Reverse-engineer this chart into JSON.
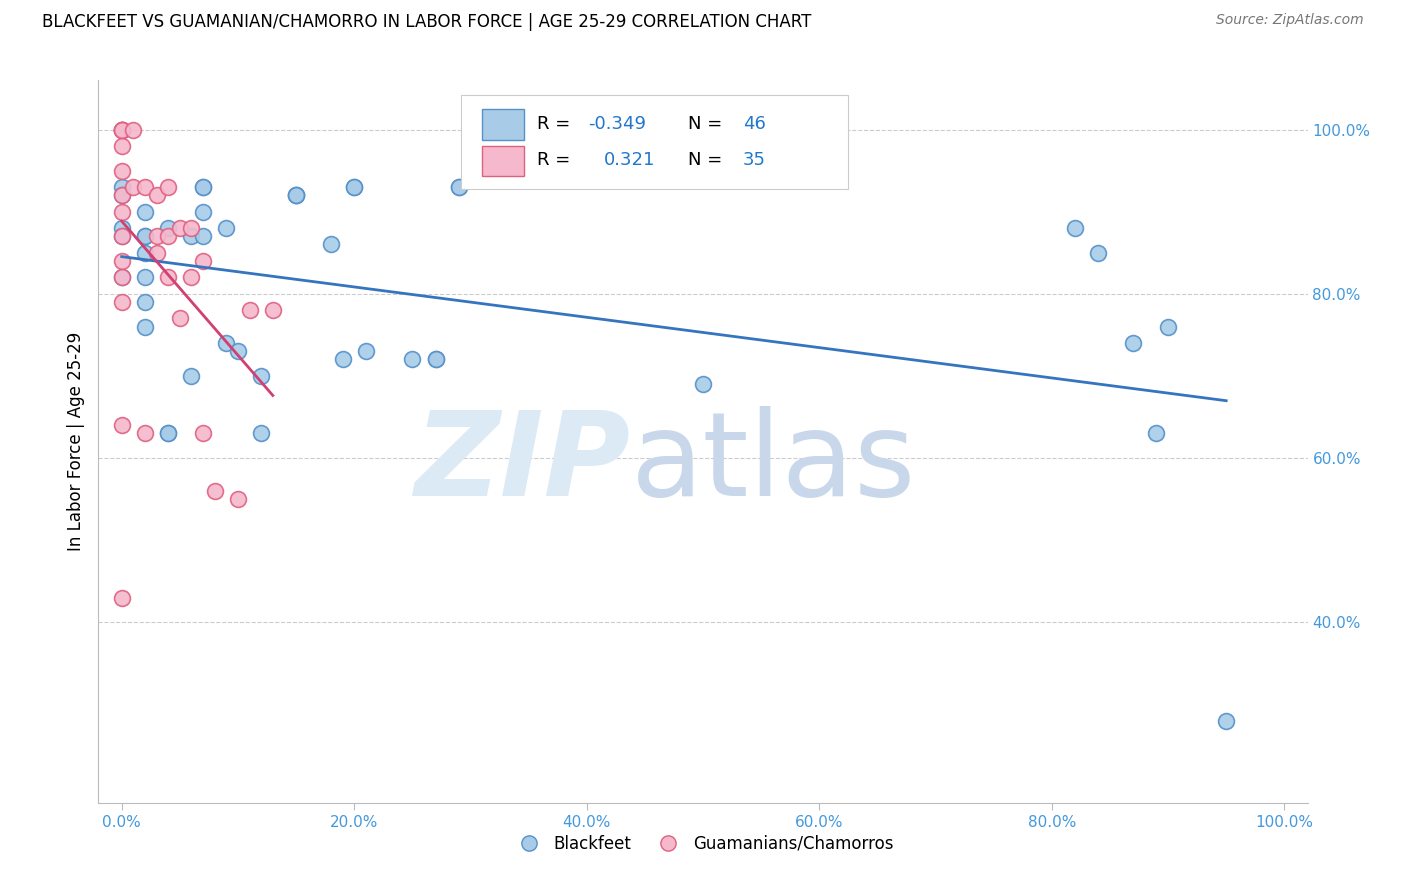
{
  "title": "BLACKFEET VS GUAMANIAN/CHAMORRO IN LABOR FORCE | AGE 25-29 CORRELATION CHART",
  "source": "Source: ZipAtlas.com",
  "ylabel": "In Labor Force | Age 25-29",
  "xlim": [
    -0.02,
    1.02
  ],
  "ylim": [
    0.18,
    1.06
  ],
  "xticks": [
    0.0,
    0.2,
    0.4,
    0.6,
    0.8,
    1.0
  ],
  "yticks_right": [
    0.4,
    0.6,
    0.8,
    1.0
  ],
  "xticklabels": [
    "0.0%",
    "20.0%",
    "40.0%",
    "60.0%",
    "80.0%",
    "100.0%"
  ],
  "yticklabels_right": [
    "40.0%",
    "60.0%",
    "80.0%",
    "100.0%"
  ],
  "grid_yticks": [
    0.4,
    0.6,
    0.8,
    1.0
  ],
  "blue_scatter_color": "#a8cce8",
  "blue_scatter_edge": "#5590c8",
  "pink_scatter_color": "#f5b8cc",
  "pink_scatter_edge": "#e06080",
  "blue_line_color": "#3575c0",
  "pink_line_color": "#d04070",
  "legend_blue_R": "-0.349",
  "legend_blue_N": "46",
  "legend_pink_R": "0.321",
  "legend_pink_N": "35",
  "tick_color": "#4499dd",
  "blue_x": [
    0.0,
    0.0,
    0.0,
    0.0,
    0.0,
    0.02,
    0.02,
    0.02,
    0.02,
    0.02,
    0.02,
    0.02,
    0.04,
    0.04,
    0.04,
    0.06,
    0.06,
    0.07,
    0.07,
    0.07,
    0.07,
    0.09,
    0.09,
    0.1,
    0.12,
    0.12,
    0.15,
    0.15,
    0.15,
    0.18,
    0.19,
    0.2,
    0.2,
    0.21,
    0.25,
    0.27,
    0.27,
    0.29,
    0.29,
    0.5,
    0.82,
    0.84,
    0.87,
    0.89,
    0.9,
    0.95
  ],
  "blue_y": [
    0.93,
    0.92,
    0.88,
    0.87,
    0.82,
    0.9,
    0.87,
    0.87,
    0.85,
    0.82,
    0.79,
    0.76,
    0.88,
    0.63,
    0.63,
    0.87,
    0.7,
    0.93,
    0.93,
    0.9,
    0.87,
    0.88,
    0.74,
    0.73,
    0.7,
    0.63,
    0.92,
    0.92,
    0.92,
    0.86,
    0.72,
    0.93,
    0.93,
    0.73,
    0.72,
    0.72,
    0.72,
    0.93,
    0.93,
    0.69,
    0.88,
    0.85,
    0.74,
    0.63,
    0.76,
    0.28
  ],
  "pink_x": [
    0.0,
    0.0,
    0.0,
    0.0,
    0.0,
    0.0,
    0.0,
    0.0,
    0.0,
    0.0,
    0.0,
    0.0,
    0.0,
    0.0,
    0.0,
    0.01,
    0.01,
    0.02,
    0.02,
    0.03,
    0.03,
    0.03,
    0.04,
    0.04,
    0.04,
    0.05,
    0.05,
    0.06,
    0.06,
    0.07,
    0.07,
    0.08,
    0.1,
    0.11,
    0.13
  ],
  "pink_y": [
    1.0,
    1.0,
    1.0,
    1.0,
    1.0,
    0.98,
    0.95,
    0.92,
    0.9,
    0.87,
    0.84,
    0.82,
    0.79,
    0.64,
    0.43,
    1.0,
    0.93,
    0.93,
    0.63,
    0.92,
    0.87,
    0.85,
    0.93,
    0.87,
    0.82,
    0.88,
    0.77,
    0.88,
    0.82,
    0.84,
    0.63,
    0.56,
    0.55,
    0.78,
    0.78
  ]
}
